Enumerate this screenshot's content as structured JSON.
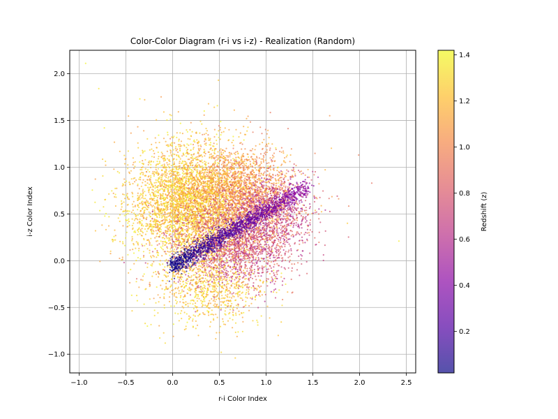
{
  "chart_data": {
    "type": "scatter",
    "title": "Color-Color Diagram (r-i vs i-z) - Realization (Random)",
    "xlabel": "r-i Color Index",
    "ylabel": "i-z Color Index",
    "xlim": [
      -1.1,
      2.6
    ],
    "ylim": [
      -1.2,
      2.25
    ],
    "xticks": [
      -1.0,
      -0.5,
      0.0,
      0.5,
      1.0,
      1.5,
      2.0,
      2.5
    ],
    "xtick_labels": [
      "−1.0",
      "−0.5",
      "0.0",
      "0.5",
      "1.0",
      "1.5",
      "2.0",
      "2.5"
    ],
    "yticks": [
      -1.0,
      -0.5,
      0.0,
      0.5,
      1.0,
      1.5,
      2.0
    ],
    "ytick_labels": [
      "−1.0",
      "−0.5",
      "0.0",
      "0.5",
      "1.0",
      "1.5",
      "2.0"
    ],
    "grid": true,
    "colormap": "plasma",
    "alpha": 0.7,
    "colorbar": {
      "label": "Redshift (z)",
      "range": [
        0.02,
        1.42
      ],
      "ticks": [
        0.2,
        0.4,
        0.6,
        0.8,
        1.0,
        1.2,
        1.4
      ],
      "tick_labels": [
        "0.2",
        "0.4",
        "0.6",
        "0.8",
        "1.0",
        "1.2",
        "1.4"
      ]
    },
    "points": [
      {
        "x": -0.93,
        "y": 2.11,
        "z": 1.4
      },
      {
        "x": -0.79,
        "y": 1.84,
        "z": 1.35
      },
      {
        "x": 0.49,
        "y": 1.93,
        "z": 1.25
      },
      {
        "x": -0.35,
        "y": 1.73,
        "z": 1.38
      },
      {
        "x": 0.66,
        "y": 1.61,
        "z": 1.15
      },
      {
        "x": 1.68,
        "y": 1.55,
        "z": 1.05
      },
      {
        "x": 1.99,
        "y": 1.13,
        "z": 0.95
      },
      {
        "x": 2.13,
        "y": 0.83,
        "z": 0.9
      },
      {
        "x": 2.42,
        "y": 0.21,
        "z": 1.38
      },
      {
        "x": 1.87,
        "y": 0.4,
        "z": 1.25
      },
      {
        "x": 0.52,
        "y": -0.98,
        "z": 1.3
      },
      {
        "x": 0.67,
        "y": -1.04,
        "z": 1.25
      },
      {
        "x": 1.13,
        "y": -0.8,
        "z": 1.2
      },
      {
        "x": -0.27,
        "y": -0.7,
        "z": 1.4
      },
      {
        "x": -0.73,
        "y": 1.42,
        "z": 1.38
      },
      {
        "x": -0.68,
        "y": 0.47,
        "z": 1.35
      }
    ],
    "clouds": [
      {
        "cx": 0.2,
        "cy": 0.6,
        "sx": 0.33,
        "sy": 0.33,
        "n": 4200,
        "zmin": 1.05,
        "zmax": 1.42
      },
      {
        "cx": 0.75,
        "cy": 0.72,
        "sx": 0.3,
        "sy": 0.25,
        "n": 1800,
        "zmin": 0.9,
        "zmax": 1.2
      },
      {
        "cx": 0.65,
        "cy": 0.15,
        "sx": 0.32,
        "sy": 0.22,
        "n": 1800,
        "zmin": 0.55,
        "zmax": 0.95
      },
      {
        "cx": 1.05,
        "cy": 0.55,
        "sx": 0.22,
        "sy": 0.18,
        "n": 900,
        "zmin": 0.5,
        "zmax": 0.9
      },
      {
        "cx": 0.4,
        "cy": -0.3,
        "sx": 0.3,
        "sy": 0.2,
        "n": 700,
        "zmin": 1.1,
        "zmax": 1.4
      }
    ],
    "band": {
      "x0": 0.0,
      "x1": 1.45,
      "y0": -0.05,
      "slope": 0.58,
      "width": 0.05,
      "n": 1400,
      "zmin": 0.02,
      "zmax": 0.45
    }
  }
}
